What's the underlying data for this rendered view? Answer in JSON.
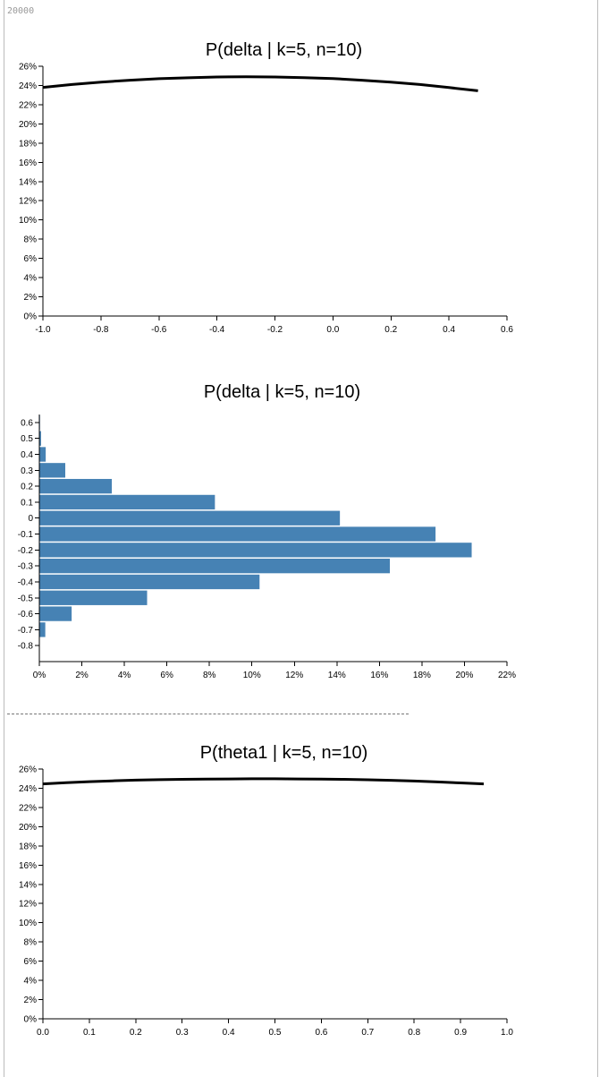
{
  "counter": "20000",
  "chart_data": [
    {
      "type": "line",
      "title": "P(delta | k=5, n=10)",
      "xlim": [
        -1.0,
        0.6
      ],
      "ylim": [
        0,
        0.26
      ],
      "x_ticks": [
        "-1.0",
        "-0.8",
        "-0.6",
        "-0.4",
        "-0.2",
        "0.0",
        "0.2",
        "0.4",
        "0.6"
      ],
      "y_ticks": [
        "0%",
        "2%",
        "4%",
        "6%",
        "8%",
        "10%",
        "12%",
        "14%",
        "16%",
        "18%",
        "20%",
        "22%",
        "24%",
        "26%"
      ],
      "x": [
        -1.0,
        -0.9,
        -0.8,
        -0.7,
        -0.6,
        -0.5,
        -0.4,
        -0.3,
        -0.2,
        -0.1,
        0.0,
        0.1,
        0.2,
        0.3,
        0.4,
        0.5
      ],
      "y": [
        0.238,
        0.241,
        0.2435,
        0.2455,
        0.247,
        0.248,
        0.2488,
        0.249,
        0.2488,
        0.2482,
        0.2472,
        0.2455,
        0.2435,
        0.241,
        0.2378,
        0.2345
      ],
      "grid": false
    },
    {
      "type": "bar",
      "orientation": "horizontal",
      "title": "P(delta | k=5, n=10)",
      "xlim": [
        0,
        0.22
      ],
      "ylim": [
        -0.9,
        0.65
      ],
      "x_ticks": [
        "0%",
        "2%",
        "4%",
        "6%",
        "8%",
        "10%",
        "12%",
        "14%",
        "16%",
        "18%",
        "20%",
        "22%"
      ],
      "y_ticks": [
        "0.6",
        "0.5",
        "0.4",
        "0.3",
        "0.2",
        "0.1",
        "0",
        "-0.1",
        "-0.2",
        "-0.3",
        "-0.4",
        "-0.5",
        "-0.6",
        "-0.7",
        "-0.8"
      ],
      "categories": [
        0.6,
        0.5,
        0.4,
        0.3,
        0.2,
        0.1,
        0.0,
        -0.1,
        -0.2,
        -0.3,
        -0.4,
        -0.5,
        -0.6,
        -0.7
      ],
      "values": [
        0.0003,
        0.0008,
        0.003,
        0.0122,
        0.0341,
        0.0826,
        0.1414,
        0.1864,
        0.2034,
        0.1649,
        0.1036,
        0.0507,
        0.0152,
        0.0028
      ],
      "color": "#4682b4",
      "grid": false
    },
    {
      "type": "line",
      "title": "P(theta1 | k=5, n=10)",
      "xlim": [
        0,
        1.0
      ],
      "ylim": [
        0,
        0.26
      ],
      "x_ticks": [
        "0.0",
        "0.1",
        "0.2",
        "0.3",
        "0.4",
        "0.5",
        "0.6",
        "0.7",
        "0.8",
        "0.9",
        "1.0"
      ],
      "y_ticks": [
        "0%",
        "2%",
        "4%",
        "6%",
        "8%",
        "10%",
        "12%",
        "14%",
        "16%",
        "18%",
        "20%",
        "22%",
        "24%",
        "26%"
      ],
      "x": [
        0.0,
        0.05,
        0.1,
        0.15,
        0.2,
        0.25,
        0.3,
        0.35,
        0.4,
        0.45,
        0.5,
        0.55,
        0.6,
        0.65,
        0.7,
        0.75,
        0.8,
        0.85,
        0.9,
        0.95
      ],
      "y": [
        0.2445,
        0.2458,
        0.2469,
        0.2477,
        0.2484,
        0.2489,
        0.2493,
        0.2496,
        0.2497,
        0.2498,
        0.2498,
        0.2497,
        0.2496,
        0.2493,
        0.2488,
        0.2483,
        0.2475,
        0.2466,
        0.2456,
        0.2445
      ],
      "grid": false
    }
  ]
}
